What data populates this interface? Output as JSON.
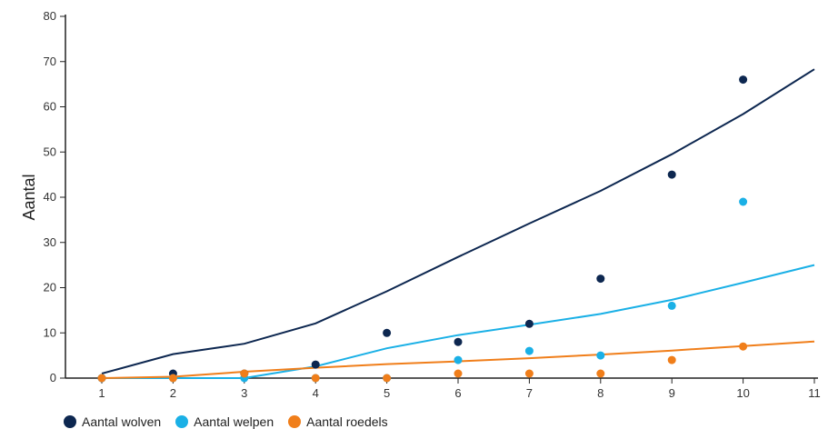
{
  "chart_data": {
    "type": "scatter",
    "ylabel": "Aantal",
    "xlabel": "",
    "x_ticks": [
      "1",
      "2",
      "3",
      "4",
      "5",
      "6",
      "7",
      "8",
      "9",
      "10",
      "11"
    ],
    "y_ticks": [
      "0",
      "10",
      "20",
      "30",
      "40",
      "50",
      "60",
      "70",
      "80"
    ],
    "xlim": [
      1,
      11
    ],
    "ylim": [
      0,
      80
    ],
    "grid": false,
    "legend_position": "bottom-left",
    "series": [
      {
        "name": "Aantal wolven",
        "color": "#0d2750",
        "points": [
          [
            1,
            0
          ],
          [
            2,
            1
          ],
          [
            3,
            1
          ],
          [
            4,
            3
          ],
          [
            5,
            10
          ],
          [
            6,
            8
          ],
          [
            7,
            12
          ],
          [
            8,
            22
          ],
          [
            9,
            45
          ],
          [
            10,
            66
          ]
        ],
        "trend": [
          [
            1,
            1
          ],
          [
            2,
            5.3
          ],
          [
            3,
            7.6
          ],
          [
            4,
            12.1
          ],
          [
            5,
            19.2
          ],
          [
            6,
            26.8
          ],
          [
            7,
            34.2
          ],
          [
            8,
            41.4
          ],
          [
            9,
            49.5
          ],
          [
            10,
            58.4
          ],
          [
            11,
            68.3
          ]
        ]
      },
      {
        "name": "Aantal welpen",
        "color": "#1ab0e6",
        "points": [
          [
            1,
            0
          ],
          [
            2,
            0
          ],
          [
            3,
            0
          ],
          [
            4,
            0
          ],
          [
            5,
            0
          ],
          [
            6,
            4
          ],
          [
            7,
            6
          ],
          [
            8,
            5
          ],
          [
            9,
            16
          ],
          [
            10,
            39
          ]
        ],
        "trend": [
          [
            1,
            0
          ],
          [
            2,
            0
          ],
          [
            3,
            0
          ],
          [
            4,
            2.6
          ],
          [
            5,
            6.6
          ],
          [
            6,
            9.5
          ],
          [
            7,
            11.8
          ],
          [
            8,
            14.2
          ],
          [
            9,
            17.3
          ],
          [
            10,
            21.1
          ],
          [
            11,
            25
          ]
        ]
      },
      {
        "name": "Aantal roedels",
        "color": "#f07e1a",
        "points": [
          [
            1,
            0
          ],
          [
            2,
            0
          ],
          [
            3,
            1
          ],
          [
            4,
            0
          ],
          [
            5,
            0
          ],
          [
            6,
            1
          ],
          [
            7,
            1
          ],
          [
            8,
            1
          ],
          [
            9,
            4
          ],
          [
            10,
            7
          ]
        ],
        "trend": [
          [
            1,
            0
          ],
          [
            2,
            0.3
          ],
          [
            3,
            1.4
          ],
          [
            4,
            2.3
          ],
          [
            5,
            3.1
          ],
          [
            6,
            3.7
          ],
          [
            7,
            4.4
          ],
          [
            8,
            5.2
          ],
          [
            9,
            6.1
          ],
          [
            10,
            7.1
          ],
          [
            11,
            8.1
          ]
        ]
      }
    ],
    "extra_points": [
      {
        "series": "Aantal wolven",
        "x": 7,
        "y": 12
      },
      {
        "series": "Aantal welpen",
        "x": 1,
        "y": 0
      }
    ]
  },
  "legend": [
    {
      "label": "Aantal wolven",
      "color": "#0d2750"
    },
    {
      "label": "Aantal welpen",
      "color": "#1ab0e6"
    },
    {
      "label": "Aantal roedels",
      "color": "#f07e1a"
    }
  ]
}
